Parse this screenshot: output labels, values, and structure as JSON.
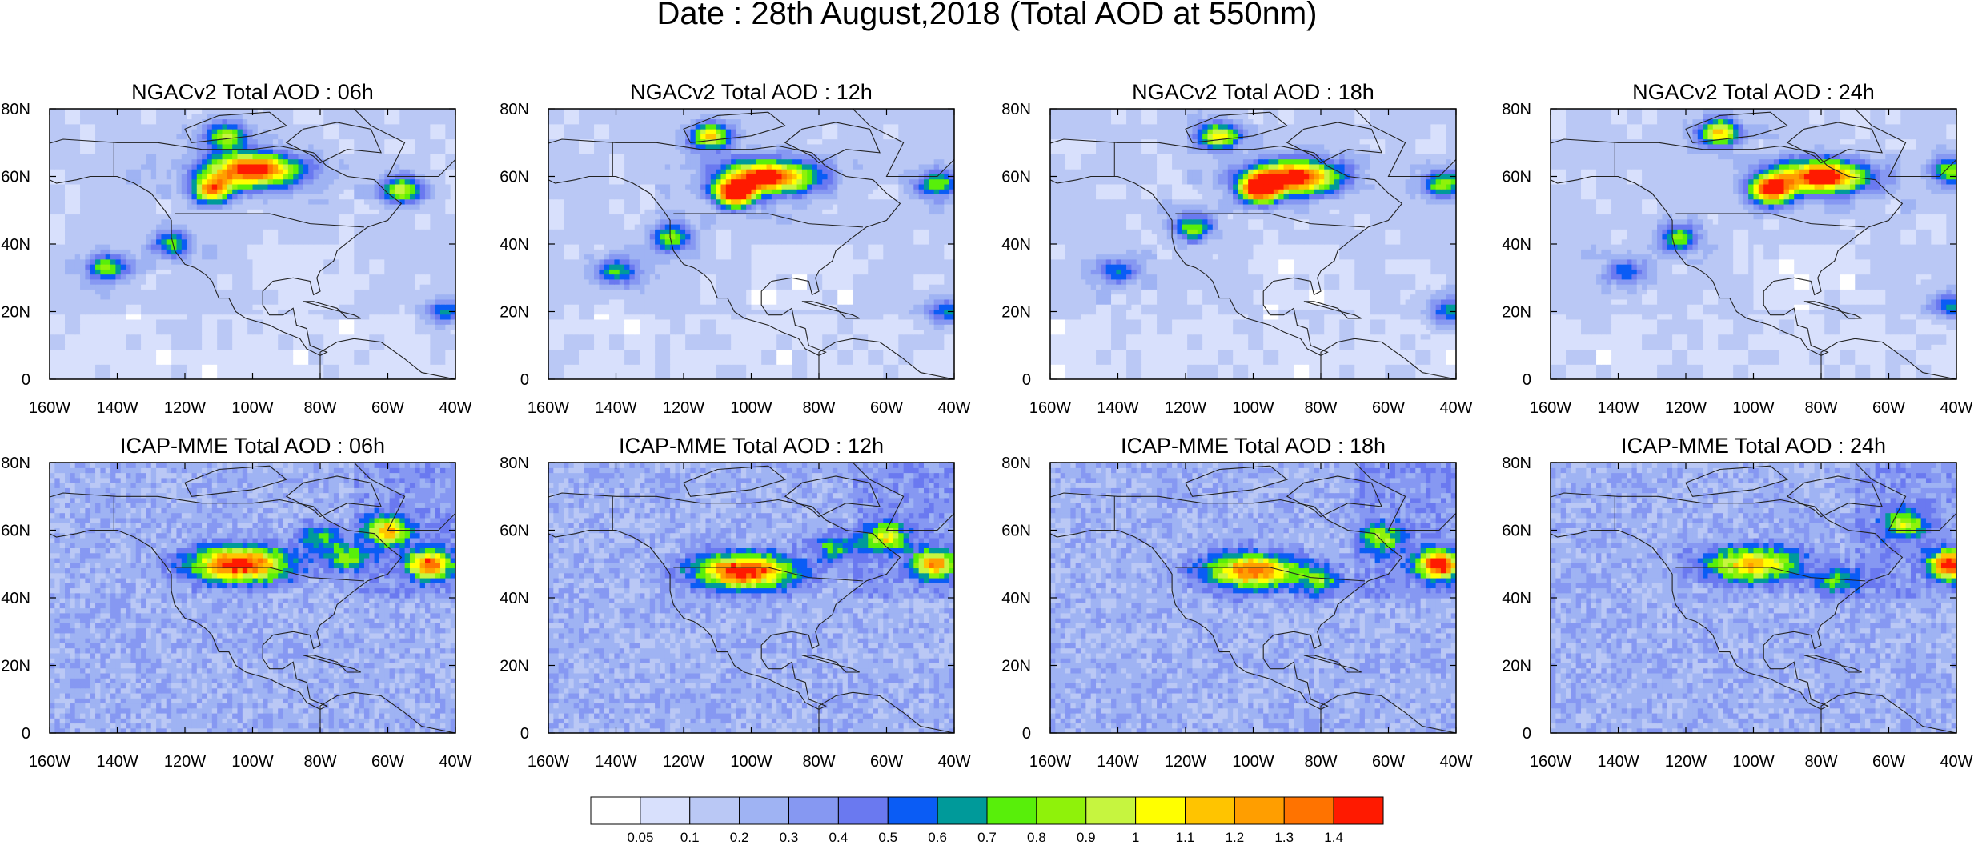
{
  "title": "Date : 28th August,2018 (Total AOD at 550nm)",
  "chart_data": [
    {
      "type": "heatmap",
      "title": "NGACv2 Total AOD : 06h",
      "model": "ngac",
      "hour": 6,
      "xticks": [
        "160W",
        "140W",
        "120W",
        "100W",
        "80W",
        "60W",
        "40W"
      ],
      "yticks": [
        "0",
        "20N",
        "40N",
        "60N",
        "80N"
      ],
      "xlim": [
        -160,
        -40
      ],
      "ylim": [
        0,
        80
      ],
      "plumes": [
        {
          "lon": -100,
          "lat": 62,
          "aod": 1.4
        },
        {
          "lon": -112,
          "lat": 56,
          "aod": 1.1
        },
        {
          "lon": -108,
          "lat": 72,
          "aod": 0.8
        },
        {
          "lon": -56,
          "lat": 56,
          "aod": 0.8
        },
        {
          "lon": -143,
          "lat": 33,
          "aod": 0.7
        },
        {
          "lon": -124,
          "lat": 40,
          "aod": 0.6
        },
        {
          "lon": -43,
          "lat": 20,
          "aod": 0.5
        }
      ]
    },
    {
      "type": "heatmap",
      "title": "NGACv2 Total AOD : 12h",
      "model": "ngac",
      "hour": 12,
      "xticks": [
        "160W",
        "140W",
        "120W",
        "100W",
        "80W",
        "60W",
        "40W"
      ],
      "yticks": [
        "0",
        "20N",
        "40N",
        "60N",
        "80N"
      ],
      "xlim": [
        -160,
        -40
      ],
      "ylim": [
        0,
        80
      ],
      "plumes": [
        {
          "lon": -95,
          "lat": 60,
          "aod": 1.4
        },
        {
          "lon": -105,
          "lat": 55,
          "aod": 1.3
        },
        {
          "lon": -112,
          "lat": 72,
          "aod": 1.0
        },
        {
          "lon": -45,
          "lat": 58,
          "aod": 0.7
        },
        {
          "lon": -140,
          "lat": 32,
          "aod": 0.6
        },
        {
          "lon": -124,
          "lat": 42,
          "aod": 0.7
        },
        {
          "lon": -42,
          "lat": 20,
          "aod": 0.5
        }
      ]
    },
    {
      "type": "heatmap",
      "title": "NGACv2 Total AOD : 18h",
      "model": "ngac",
      "hour": 18,
      "xticks": [
        "160W",
        "140W",
        "120W",
        "100W",
        "80W",
        "60W",
        "40W"
      ],
      "yticks": [
        "0",
        "20N",
        "40N",
        "60N",
        "80N"
      ],
      "xlim": [
        -160,
        -40
      ],
      "ylim": [
        0,
        80
      ],
      "plumes": [
        {
          "lon": -88,
          "lat": 60,
          "aod": 1.4
        },
        {
          "lon": -98,
          "lat": 56,
          "aod": 1.3
        },
        {
          "lon": -110,
          "lat": 72,
          "aod": 1.0
        },
        {
          "lon": -44,
          "lat": 58,
          "aod": 0.7
        },
        {
          "lon": -140,
          "lat": 32,
          "aod": 0.5
        },
        {
          "lon": -118,
          "lat": 45,
          "aod": 0.7
        },
        {
          "lon": -42,
          "lat": 20,
          "aod": 0.5
        }
      ]
    },
    {
      "type": "heatmap",
      "title": "NGACv2 Total AOD : 24h",
      "model": "ngac",
      "hour": 24,
      "xticks": [
        "160W",
        "140W",
        "120W",
        "100W",
        "80W",
        "60W",
        "40W"
      ],
      "yticks": [
        "0",
        "20N",
        "40N",
        "60N",
        "80N"
      ],
      "xlim": [
        -160,
        -40
      ],
      "ylim": [
        0,
        80
      ],
      "plumes": [
        {
          "lon": -80,
          "lat": 60,
          "aod": 1.4
        },
        {
          "lon": -95,
          "lat": 56,
          "aod": 1.3
        },
        {
          "lon": -110,
          "lat": 73,
          "aod": 1.0
        },
        {
          "lon": -42,
          "lat": 62,
          "aod": 0.7
        },
        {
          "lon": -138,
          "lat": 32,
          "aod": 0.5
        },
        {
          "lon": -122,
          "lat": 42,
          "aod": 0.7
        },
        {
          "lon": -42,
          "lat": 22,
          "aod": 0.5
        }
      ]
    },
    {
      "type": "heatmap",
      "title": "ICAP-MME Total AOD : 06h",
      "model": "icap",
      "hour": 6,
      "xticks": [
        "160W",
        "140W",
        "120W",
        "100W",
        "80W",
        "60W",
        "40W"
      ],
      "yticks": [
        "0",
        "20N",
        "40N",
        "60N",
        "80N"
      ],
      "xlim": [
        -160,
        -40
      ],
      "ylim": [
        0,
        80
      ],
      "plumes": [
        {
          "lon": -104,
          "lat": 50,
          "aod": 1.3
        },
        {
          "lon": -48,
          "lat": 50,
          "aod": 1.1
        },
        {
          "lon": -60,
          "lat": 60,
          "aod": 0.9
        },
        {
          "lon": -72,
          "lat": 52,
          "aod": 0.6
        },
        {
          "lon": -80,
          "lat": 58,
          "aod": 0.5
        }
      ]
    },
    {
      "type": "heatmap",
      "title": "ICAP-MME Total AOD : 12h",
      "model": "icap",
      "hour": 12,
      "xticks": [
        "160W",
        "140W",
        "120W",
        "100W",
        "80W",
        "60W",
        "40W"
      ],
      "yticks": [
        "0",
        "20N",
        "40N",
        "60N",
        "80N"
      ],
      "xlim": [
        -160,
        -40
      ],
      "ylim": [
        0,
        80
      ],
      "plumes": [
        {
          "lon": -102,
          "lat": 48,
          "aod": 1.3
        },
        {
          "lon": -46,
          "lat": 50,
          "aod": 1.0
        },
        {
          "lon": -60,
          "lat": 58,
          "aod": 0.7
        },
        {
          "lon": -75,
          "lat": 55,
          "aod": 0.5
        }
      ]
    },
    {
      "type": "heatmap",
      "title": "ICAP-MME Total AOD : 18h",
      "model": "icap",
      "hour": 18,
      "xticks": [
        "160W",
        "140W",
        "120W",
        "100W",
        "80W",
        "60W",
        "40W"
      ],
      "yticks": [
        "0",
        "20N",
        "40N",
        "60N",
        "80N"
      ],
      "xlim": [
        -160,
        -40
      ],
      "ylim": [
        0,
        80
      ],
      "plumes": [
        {
          "lon": -100,
          "lat": 48,
          "aod": 1.1
        },
        {
          "lon": -45,
          "lat": 50,
          "aod": 1.3
        },
        {
          "lon": -62,
          "lat": 58,
          "aod": 0.6
        },
        {
          "lon": -80,
          "lat": 45,
          "aod": 0.5
        }
      ]
    },
    {
      "type": "heatmap",
      "title": "ICAP-MME Total AOD : 24h",
      "model": "icap",
      "hour": 24,
      "xticks": [
        "160W",
        "140W",
        "120W",
        "100W",
        "80W",
        "60W",
        "40W"
      ],
      "yticks": [
        "0",
        "20N",
        "40N",
        "60N",
        "80N"
      ],
      "xlim": [
        -160,
        -40
      ],
      "ylim": [
        0,
        80
      ],
      "plumes": [
        {
          "lon": -100,
          "lat": 50,
          "aod": 0.9
        },
        {
          "lon": -42,
          "lat": 50,
          "aod": 1.2
        },
        {
          "lon": -55,
          "lat": 62,
          "aod": 0.6
        },
        {
          "lon": -75,
          "lat": 45,
          "aod": 0.5
        }
      ]
    }
  ],
  "colorbar": {
    "labels": [
      "0.05",
      "0.1",
      "0.2",
      "0.3",
      "0.4",
      "0.5",
      "0.6",
      "0.7",
      "0.8",
      "0.9",
      "1",
      "1.1",
      "1.2",
      "1.3",
      "1.4"
    ],
    "levels": [
      0.05,
      0.1,
      0.2,
      0.3,
      0.4,
      0.5,
      0.6,
      0.7,
      0.8,
      0.9,
      1.0,
      1.1,
      1.2,
      1.3,
      1.4
    ],
    "colors": [
      "#ffffff",
      "#d8e0fc",
      "#bac8f5",
      "#9fb3f3",
      "#8698f2",
      "#6a79f0",
      "#0a5cf5",
      "#009a9a",
      "#58ef0a",
      "#8ff20a",
      "#c6f53f",
      "#ffff00",
      "#ffc400",
      "#ff9e00",
      "#ff7300",
      "#ff1a00"
    ]
  }
}
